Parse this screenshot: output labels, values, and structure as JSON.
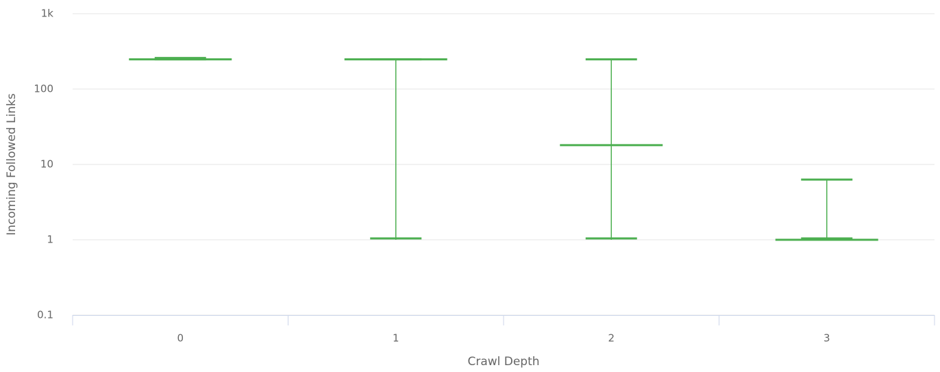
{
  "chart_data": {
    "type": "box",
    "x_label": "Crawl Depth",
    "y_label": "Incoming Followed Links",
    "categories": [
      "0",
      "1",
      "2",
      "3"
    ],
    "series": [
      {
        "color": "#4caf50",
        "low": [
          248,
          1,
          1,
          1
        ],
        "q1": [
          248,
          248,
          18,
          1
        ],
        "median": [
          248,
          248,
          18,
          1
        ],
        "q3": [
          248,
          248,
          18,
          1
        ],
        "high": [
          248,
          248,
          248,
          6.3
        ]
      }
    ],
    "log_scale": true,
    "ylim": [
      0.1,
      1000
    ],
    "yticks": [
      0.1,
      1,
      10,
      100,
      {
        "value": 1000,
        "label": "1k"
      }
    ],
    "grid": true
  }
}
